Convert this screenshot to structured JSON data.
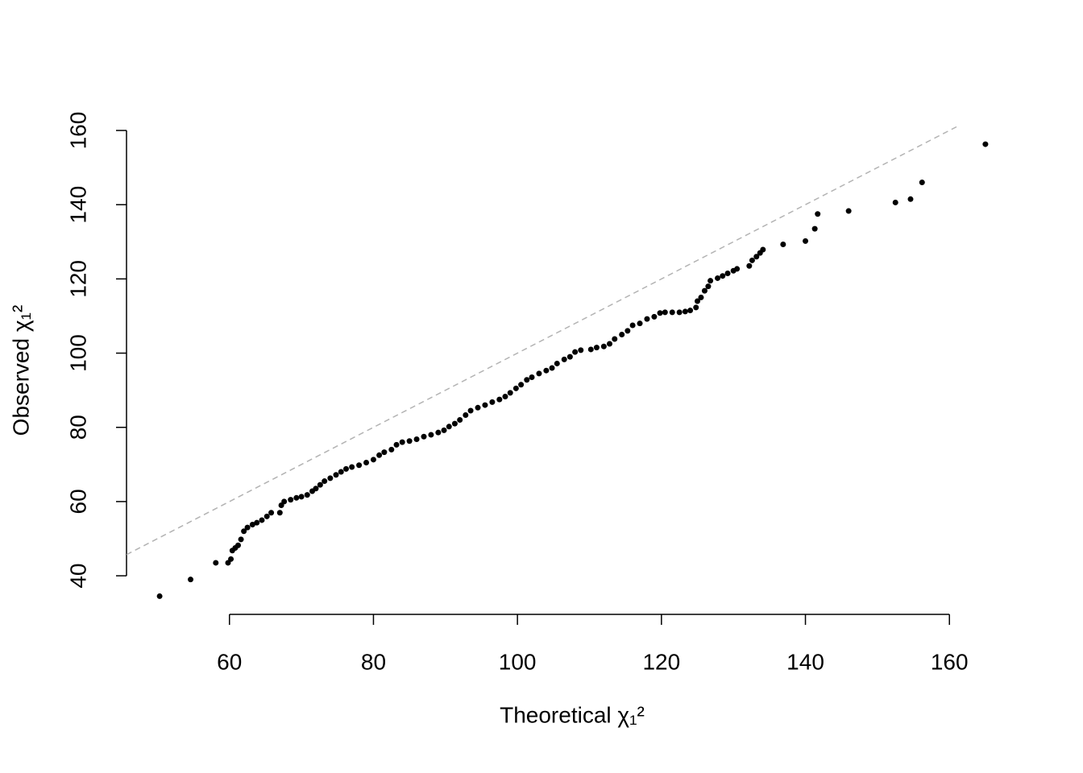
{
  "chart_data": {
    "type": "scatter",
    "x_label": "Theoretical χ₁²",
    "y_label": "Observed χ₁²",
    "xlim": [
      45.7,
      169.6
    ],
    "ylim": [
      29.6,
      161.2
    ],
    "xticks": [
      60,
      80,
      100,
      120,
      140,
      160
    ],
    "yticks": [
      40,
      60,
      80,
      100,
      120,
      140,
      160
    ],
    "color": "#000000",
    "reference_line": {
      "slope": 1,
      "intercept": 0,
      "color": "#b3b3b3"
    },
    "x": [
      50.3,
      54.6,
      58.1,
      59.8,
      60.2,
      60.4,
      60.8,
      61.2,
      61.6,
      62,
      62.5,
      63.2,
      63.8,
      64.5,
      65.2,
      65.8,
      67,
      67.2,
      67.6,
      68.5,
      69.3,
      70,
      70.8,
      71.5,
      72,
      72.6,
      73.2,
      74,
      74.8,
      75.5,
      76.2,
      77,
      78,
      79,
      80,
      80.8,
      81.5,
      82.5,
      83.2,
      84,
      85,
      86,
      87,
      88,
      89,
      89.8,
      90.5,
      91.3,
      92,
      92.8,
      93.5,
      94.5,
      95.5,
      96.5,
      97.5,
      98.3,
      99,
      99.8,
      100.5,
      101.3,
      102,
      103,
      104,
      104.8,
      105.5,
      106.5,
      107.3,
      108,
      108.8,
      110.2,
      111,
      112,
      112.8,
      113.5,
      114.5,
      115.3,
      116,
      117,
      118,
      119,
      119.8,
      120.5,
      121.5,
      122.5,
      123.3,
      124,
      124.8,
      125,
      125.5,
      126,
      126.5,
      126.8,
      127.8,
      128.5,
      129.2,
      130,
      130.5,
      132.2,
      132.6,
      133.2,
      133.7,
      134.1,
      136.9,
      140,
      141.3,
      141.7,
      146,
      152.5,
      154.6,
      156.2,
      165
    ],
    "y": [
      34.5,
      39,
      43.5,
      43.5,
      44.5,
      46.8,
      47.5,
      48.2,
      49.8,
      52,
      53,
      53.8,
      54.3,
      55,
      56,
      57,
      57,
      59,
      60,
      60.5,
      61,
      61.3,
      61.8,
      62.8,
      63.5,
      64.5,
      65.5,
      66.3,
      67.2,
      68,
      68.8,
      69.3,
      69.8,
      70.5,
      71.3,
      72.5,
      73.3,
      74,
      75.3,
      76,
      76.3,
      76.8,
      77.5,
      78,
      78.6,
      79.2,
      80.2,
      81,
      82,
      83.3,
      84.5,
      85.3,
      86,
      86.8,
      87.5,
      88.3,
      89.3,
      90.5,
      91.5,
      92.8,
      93.5,
      94.5,
      95.3,
      96,
      97.2,
      98.3,
      99,
      100.3,
      100.8,
      101,
      101.5,
      101.8,
      102.5,
      103.8,
      105,
      106,
      107.5,
      108,
      109.2,
      109.8,
      110.8,
      111,
      111,
      111,
      111.2,
      111.5,
      112.3,
      114,
      115,
      116.8,
      118,
      119.5,
      120.2,
      120.8,
      121.5,
      122.2,
      122.7,
      123.5,
      125,
      126,
      127,
      127.9,
      129.3,
      130.2,
      133.5,
      137.5,
      138.3,
      140.6,
      141.5,
      146,
      156.3
    ]
  }
}
